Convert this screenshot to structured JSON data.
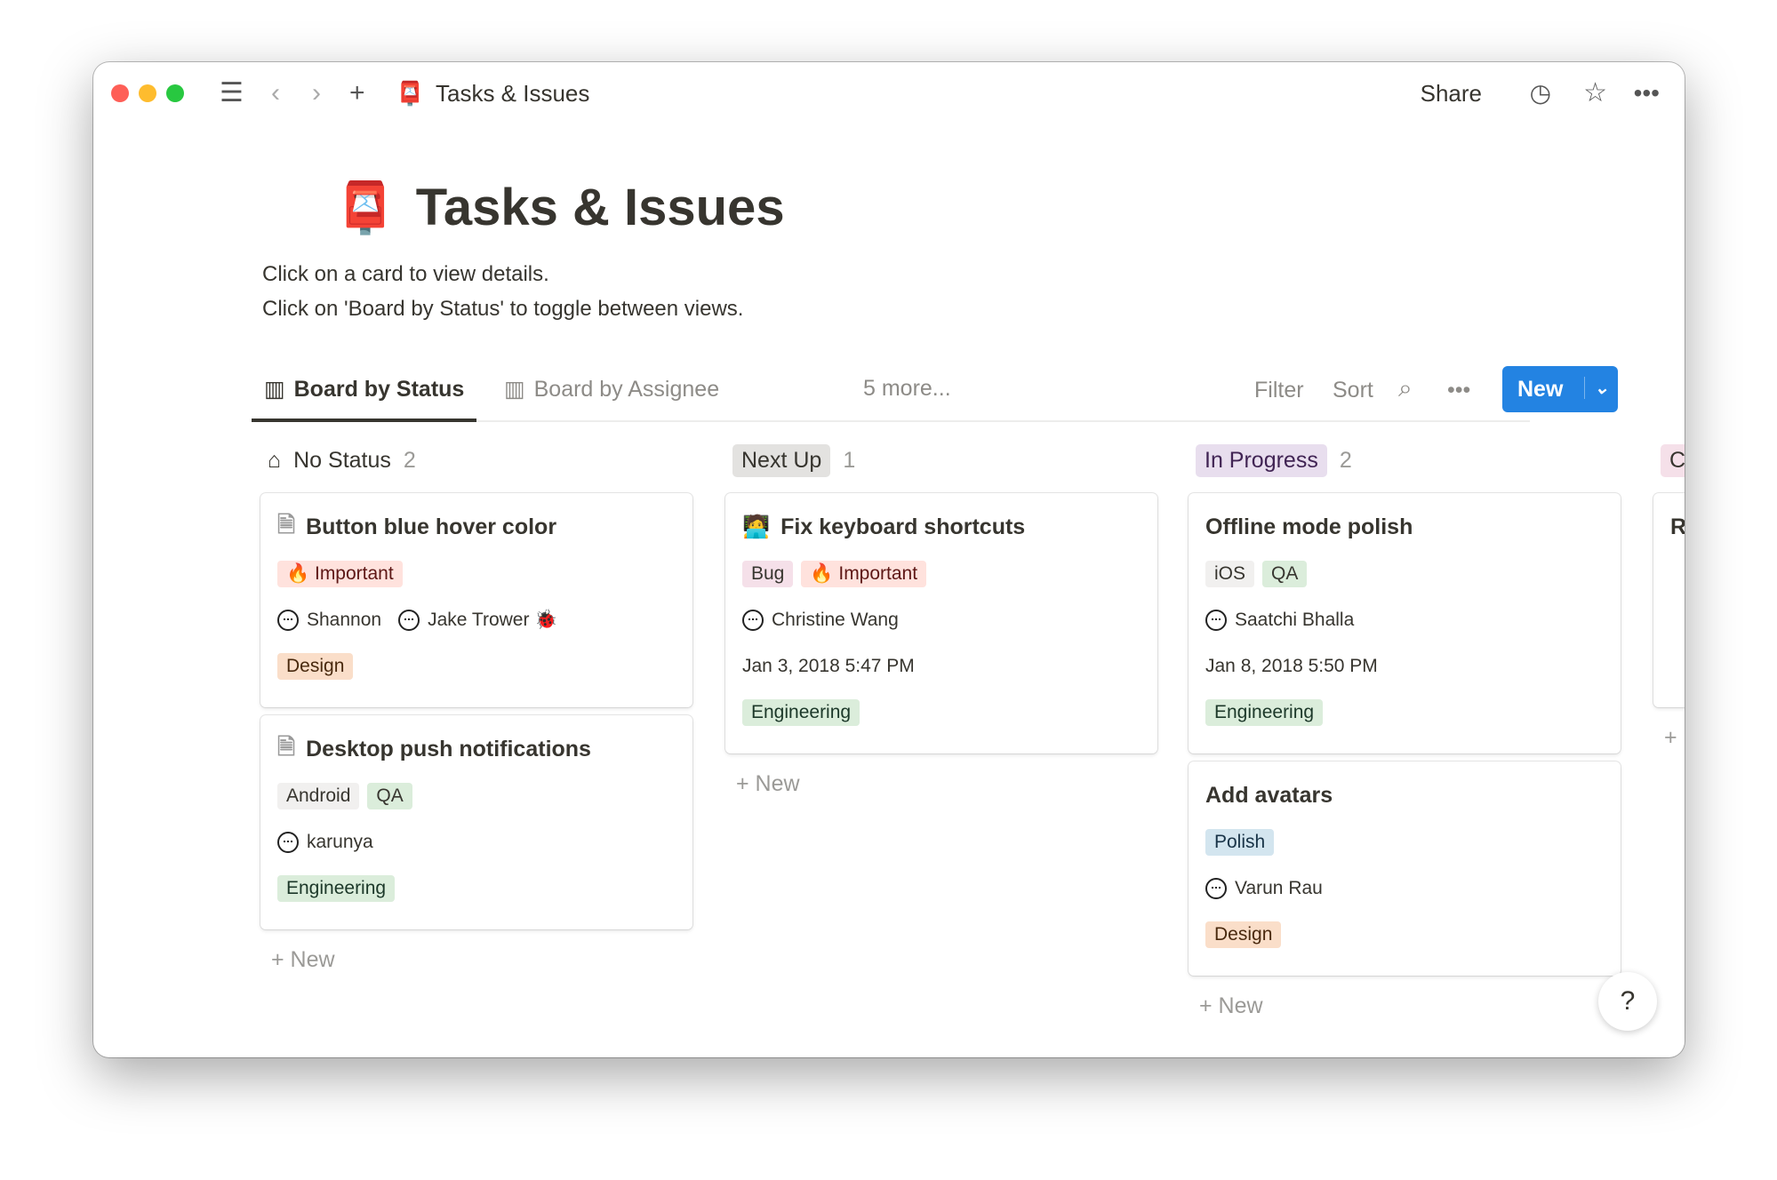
{
  "window": {
    "title": "Tasks & Issues",
    "share": "Share"
  },
  "page": {
    "title": "Tasks & Issues",
    "desc1": "Click on a card to view details.",
    "desc2": "Click on 'Board by Status' to toggle between views."
  },
  "views": {
    "tabs": [
      "Board by Status",
      "Board by Assignee"
    ],
    "more": "5 more...",
    "filter": "Filter",
    "sort": "Sort",
    "new": "New"
  },
  "colors": {
    "accent": "#2383e2"
  },
  "columns": [
    {
      "name": "No Status",
      "count": "2",
      "new": "New",
      "cards": [
        {
          "title": "Button blue hover color",
          "tags": [
            "🔥 Important"
          ],
          "people": [
            "Shannon",
            "Jake Trower 🐞"
          ],
          "team": "Design"
        },
        {
          "title": "Desktop push notifications",
          "tags": [
            "Android",
            "QA"
          ],
          "people": [
            "karunya"
          ],
          "team": "Engineering"
        }
      ]
    },
    {
      "name": "Next Up",
      "count": "1",
      "new": "New",
      "cards": [
        {
          "title": "Fix keyboard shortcuts",
          "tags": [
            "Bug",
            "🔥 Important"
          ],
          "people": [
            "Christine Wang"
          ],
          "date": "Jan 3, 2018 5:47 PM",
          "team": "Engineering"
        }
      ]
    },
    {
      "name": "In Progress",
      "count": "2",
      "new": "New",
      "cards": [
        {
          "title": "Offline mode polish",
          "tags": [
            "iOS",
            "QA"
          ],
          "people": [
            "Saatchi Bhalla"
          ],
          "date": "Jan 8, 2018 5:50 PM",
          "team": "Engineering"
        },
        {
          "title": "Add avatars",
          "tags": [
            "Polish"
          ],
          "people": [
            "Varun Rau"
          ],
          "team": "Design"
        }
      ]
    },
    {
      "name": "C",
      "card_title": "R"
    }
  ],
  "help": "?"
}
